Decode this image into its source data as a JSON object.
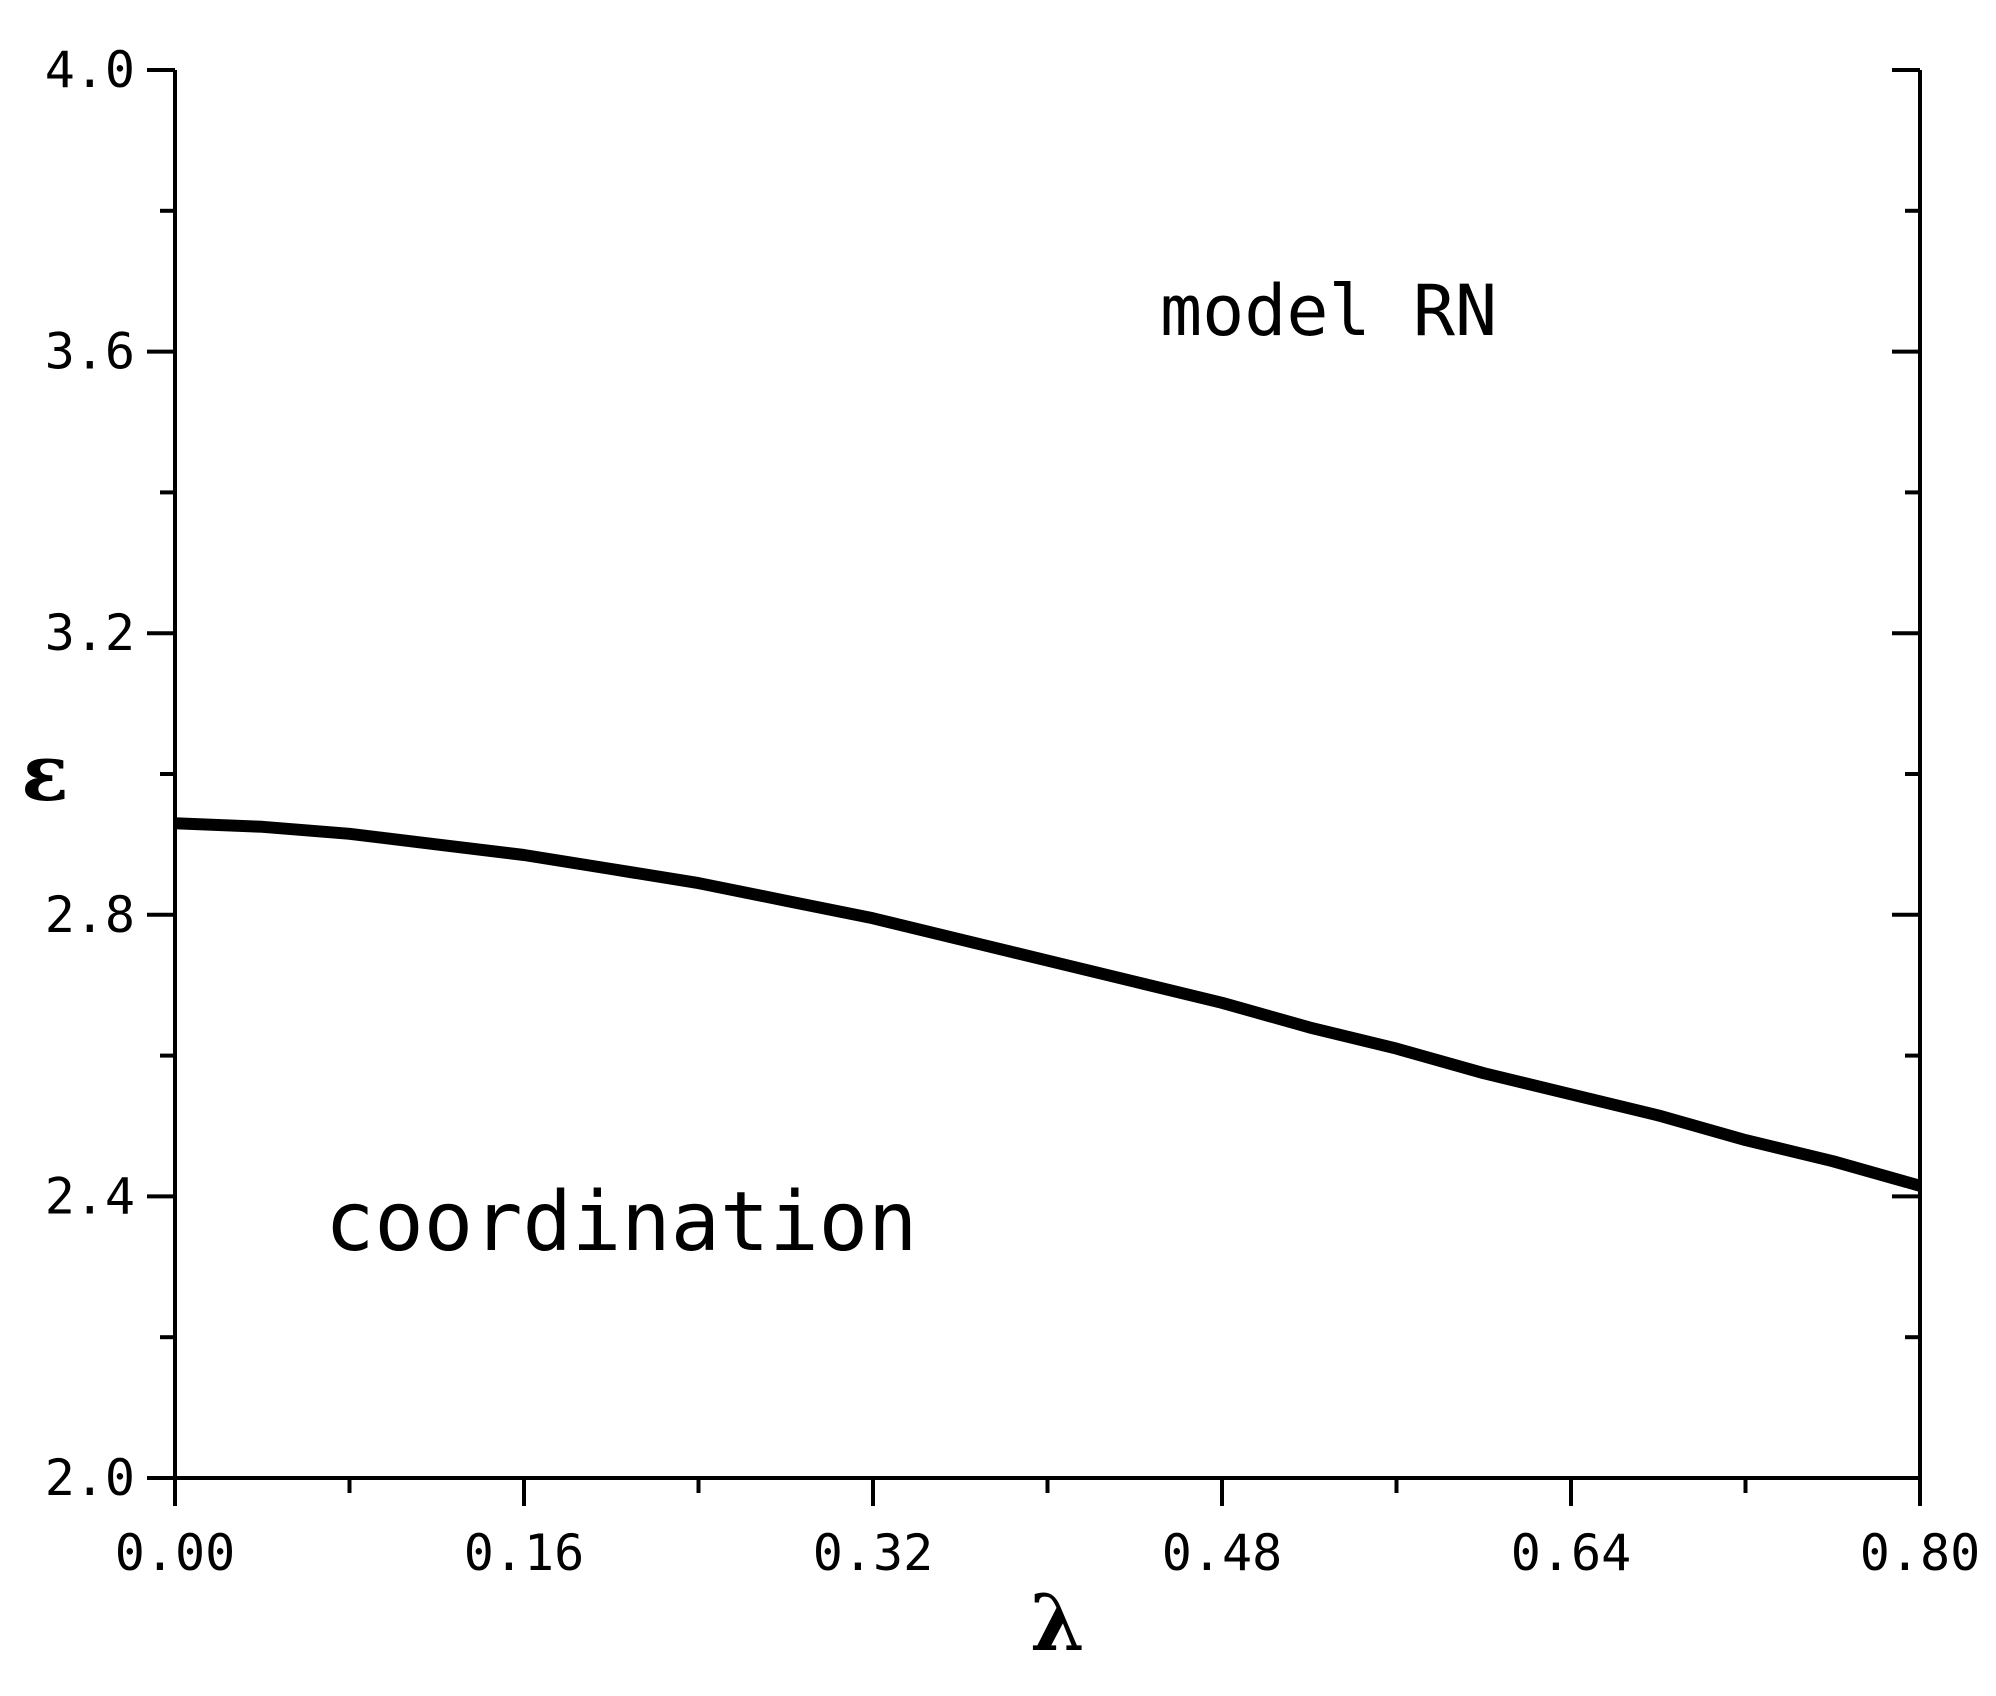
{
  "chart_data": {
    "type": "line",
    "title": "",
    "xlabel": "λ",
    "ylabel": "ε",
    "xlim": [
      0.0,
      0.8
    ],
    "ylim": [
      2.0,
      4.0
    ],
    "x_ticks": [
      "0.00",
      "0.16",
      "0.32",
      "0.48",
      "0.64",
      "0.80"
    ],
    "y_ticks": [
      "2.0",
      "2.4",
      "2.8",
      "3.2",
      "3.6",
      "4.0"
    ],
    "grid": false,
    "legend": "none",
    "line_color": "#000000",
    "annotations": [
      "model RN",
      "coordination"
    ],
    "series": [
      {
        "x": [
          0.0,
          0.04,
          0.08,
          0.12,
          0.16,
          0.2,
          0.24,
          0.28,
          0.32,
          0.36,
          0.4,
          0.44,
          0.48,
          0.52,
          0.56,
          0.6,
          0.64,
          0.68,
          0.72,
          0.76,
          0.8
        ],
        "values": [
          2.93,
          2.925,
          2.915,
          2.9,
          2.885,
          2.865,
          2.845,
          2.82,
          2.795,
          2.765,
          2.735,
          2.705,
          2.675,
          2.64,
          2.61,
          2.575,
          2.545,
          2.515,
          2.48,
          2.45,
          2.415
        ]
      }
    ]
  }
}
